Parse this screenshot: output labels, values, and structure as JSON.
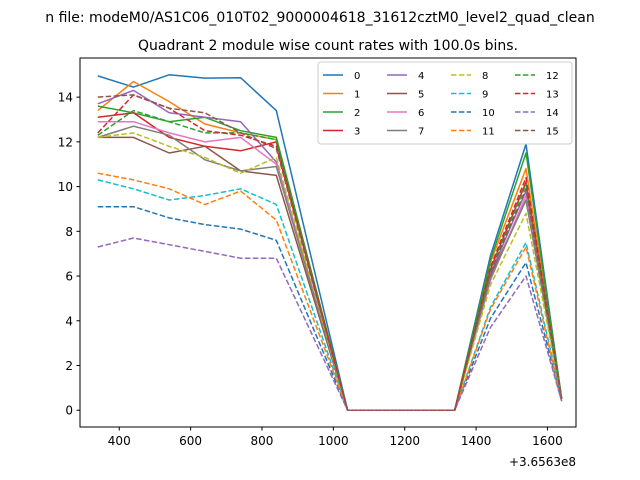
{
  "chart_data": {
    "type": "line",
    "suptitle": "n file: modeM0/AS1C06_010T02_9000004618_31612cztM0_level2_quad_clean",
    "title": "Quadrant 2 module wise count rates with 100.0s bins.",
    "xlabel": "",
    "ylabel": "",
    "x_offset_label": "+3.6563e8",
    "xlim": [
      290,
      1680
    ],
    "ylim": [
      -0.75,
      15.75
    ],
    "x": [
      340,
      440,
      540,
      640,
      740,
      840,
      1040,
      1140,
      1240,
      1340,
      1440,
      1540,
      1640
    ],
    "xticks": [
      400,
      600,
      800,
      1000,
      1200,
      1400,
      1600
    ],
    "yticks": [
      0,
      2,
      4,
      6,
      8,
      10,
      12,
      14
    ],
    "legend_position": "upper right",
    "legend_columns": 4,
    "series": [
      {
        "name": "0",
        "color": "#1f77b4",
        "dash": "solid",
        "values": [
          14.95,
          14.45,
          15.0,
          14.85,
          14.87,
          13.4,
          0,
          0,
          0,
          0,
          6.9,
          11.9,
          0.5
        ]
      },
      {
        "name": "1",
        "color": "#ff7f0e",
        "dash": "solid",
        "values": [
          13.4,
          14.7,
          13.8,
          12.8,
          12.4,
          12.1,
          0,
          0,
          0,
          0,
          6.6,
          10.8,
          0.5
        ]
      },
      {
        "name": "2",
        "color": "#2ca02c",
        "dash": "solid",
        "values": [
          13.6,
          13.3,
          12.9,
          13.1,
          12.5,
          12.2,
          0,
          0,
          0,
          0,
          6.7,
          11.5,
          0.5
        ]
      },
      {
        "name": "3",
        "color": "#d62728",
        "dash": "solid",
        "values": [
          13.1,
          13.3,
          12.2,
          11.8,
          11.6,
          12.0,
          0,
          0,
          0,
          0,
          6.3,
          10.2,
          0.5
        ]
      },
      {
        "name": "4",
        "color": "#9467bd",
        "dash": "solid",
        "values": [
          13.7,
          14.3,
          13.3,
          13.1,
          12.9,
          11.1,
          0,
          0,
          0,
          0,
          6.1,
          9.8,
          0.5
        ]
      },
      {
        "name": "5",
        "color": "#8c564b",
        "dash": "solid",
        "values": [
          12.2,
          12.2,
          11.5,
          11.8,
          10.7,
          10.5,
          0,
          0,
          0,
          0,
          6.0,
          9.4,
          0.5
        ]
      },
      {
        "name": "6",
        "color": "#e377c2",
        "dash": "solid",
        "values": [
          12.9,
          12.9,
          12.4,
          12.0,
          12.2,
          11.0,
          0,
          0,
          0,
          0,
          5.8,
          9.6,
          0.5
        ]
      },
      {
        "name": "7",
        "color": "#7f7f7f",
        "dash": "solid",
        "values": [
          12.2,
          12.7,
          12.3,
          11.2,
          10.7,
          10.9,
          0,
          0,
          0,
          0,
          5.9,
          9.4,
          0.5
        ]
      },
      {
        "name": "8",
        "color": "#bcbd22",
        "dash": "dashed",
        "values": [
          12.2,
          12.4,
          11.8,
          11.3,
          10.6,
          11.3,
          0,
          0,
          0,
          0,
          5.6,
          8.8,
          0.5
        ]
      },
      {
        "name": "9",
        "color": "#17becf",
        "dash": "dashed",
        "values": [
          10.3,
          9.9,
          9.4,
          9.6,
          9.9,
          9.2,
          0,
          0,
          0,
          0,
          4.6,
          7.5,
          0.5
        ]
      },
      {
        "name": "10",
        "color": "#1f77b4",
        "dash": "dashed",
        "values": [
          9.1,
          9.1,
          8.6,
          8.3,
          8.1,
          7.6,
          0,
          0,
          0,
          0,
          4.1,
          6.6,
          0.4
        ]
      },
      {
        "name": "11",
        "color": "#ff7f0e",
        "dash": "dashed",
        "values": [
          10.6,
          10.3,
          9.9,
          9.2,
          9.8,
          8.5,
          0,
          0,
          0,
          0,
          4.5,
          7.3,
          0.4
        ]
      },
      {
        "name": "12",
        "color": "#2ca02c",
        "dash": "dashed",
        "values": [
          12.3,
          13.4,
          12.9,
          12.4,
          12.4,
          12.1,
          0,
          0,
          0,
          0,
          6.3,
          10.1,
          0.5
        ]
      },
      {
        "name": "13",
        "color": "#d62728",
        "dash": "dashed",
        "values": [
          12.4,
          14.1,
          13.5,
          12.5,
          12.3,
          11.8,
          0,
          0,
          0,
          0,
          6.4,
          10.4,
          0.5
        ]
      },
      {
        "name": "14",
        "color": "#9467bd",
        "dash": "dashed",
        "values": [
          7.3,
          7.7,
          7.4,
          7.1,
          6.8,
          6.8,
          0,
          0,
          0,
          0,
          3.7,
          6.0,
          0.4
        ]
      },
      {
        "name": "15",
        "color": "#8c564b",
        "dash": "dashed",
        "values": [
          14.0,
          14.1,
          13.5,
          13.3,
          12.4,
          11.7,
          0,
          0,
          0,
          0,
          6.2,
          9.9,
          0.5
        ]
      }
    ]
  }
}
